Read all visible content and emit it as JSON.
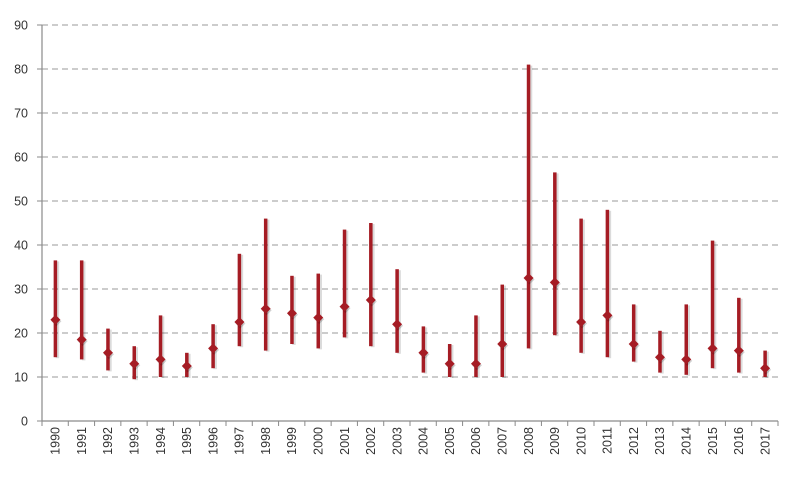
{
  "chart_data": {
    "type": "scatter",
    "subtype": "high-low-mean",
    "title": "",
    "xlabel": "",
    "ylabel": "",
    "ylim": [
      0,
      90
    ],
    "yticks": [
      0,
      10,
      20,
      30,
      40,
      50,
      60,
      70,
      80,
      90
    ],
    "grid": "horizontal-dashed",
    "legend": "none",
    "x": [
      "1990",
      "1991",
      "1992",
      "1993",
      "1994",
      "1995",
      "1996",
      "1997",
      "1998",
      "1999",
      "2000",
      "2001",
      "2002",
      "2003",
      "2004",
      "2005",
      "2006",
      "2007",
      "2008",
      "2009",
      "2010",
      "2011",
      "2012",
      "2013",
      "2014",
      "2015",
      "2016",
      "2017"
    ],
    "series": [
      {
        "role": "high",
        "values": [
          36.5,
          36.5,
          21.0,
          17.0,
          24.0,
          15.5,
          22.0,
          38.0,
          46.0,
          33.0,
          33.5,
          43.5,
          45.0,
          34.5,
          21.5,
          17.5,
          24.0,
          31.0,
          81.0,
          56.5,
          46.0,
          48.0,
          26.5,
          20.5,
          26.5,
          41.0,
          28.0,
          16.0
        ]
      },
      {
        "role": "low",
        "values": [
          14.5,
          14.0,
          11.5,
          9.5,
          10.0,
          10.0,
          12.0,
          17.0,
          16.0,
          17.5,
          16.5,
          19.0,
          17.0,
          15.5,
          11.0,
          10.0,
          10.0,
          10.0,
          16.5,
          19.5,
          15.5,
          14.5,
          13.5,
          11.0,
          10.5,
          12.0,
          11.0,
          10.0
        ]
      },
      {
        "role": "mean",
        "values": [
          23.0,
          18.5,
          15.5,
          13.0,
          14.0,
          12.5,
          16.5,
          22.5,
          25.5,
          24.5,
          23.5,
          26.0,
          27.5,
          22.0,
          15.5,
          13.0,
          13.0,
          17.5,
          32.5,
          31.5,
          22.5,
          24.0,
          17.5,
          14.5,
          14.0,
          16.5,
          16.0,
          12.0
        ]
      }
    ],
    "colors": {
      "bar": "#a51c24",
      "marker": "#a51c24",
      "grid": "#9a9a9a",
      "axis": "#8a8a8a",
      "text": "#333333"
    }
  }
}
